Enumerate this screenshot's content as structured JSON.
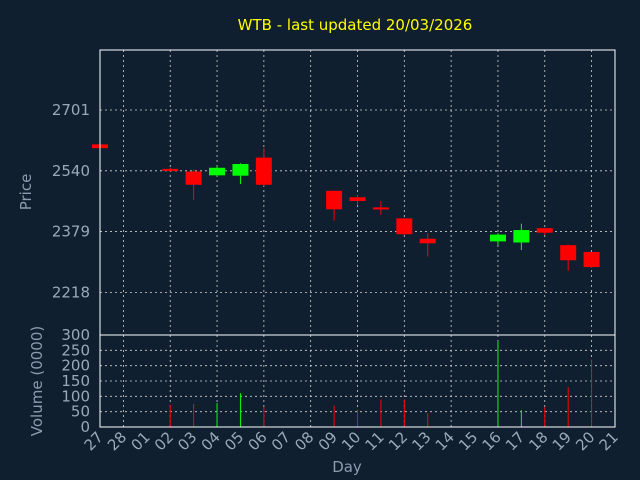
{
  "chart_data": {
    "type": "candlestick",
    "title": "WTB - last updated 20/03/2026",
    "xlabel": "Day",
    "x_ticks": [
      "27",
      "28",
      "01",
      "02",
      "03",
      "04",
      "05",
      "06",
      "07",
      "08",
      "09",
      "10",
      "11",
      "12",
      "13",
      "14",
      "15",
      "16",
      "17",
      "18",
      "19",
      "20",
      "21"
    ],
    "price_panel": {
      "ylabel": "Price",
      "yticks": [
        2218,
        2379,
        2540,
        2701
      ],
      "ylim": [
        2105,
        2860
      ],
      "grid": true
    },
    "volume_panel": {
      "ylabel": "Volume (0000)",
      "yticks": [
        0,
        50,
        100,
        150,
        200,
        250,
        300
      ],
      "ylim": [
        0,
        300
      ],
      "grid": true
    },
    "colors": {
      "up": "#00ff00",
      "down": "#ff0000",
      "background": "#0f1f30",
      "frame": "#ffffff",
      "title": "#ffff00"
    },
    "candles": [
      {
        "day": "27",
        "open": 2610,
        "high": 2610,
        "low": 2600,
        "close": 2600,
        "volume": 0
      },
      {
        "day": "02",
        "open": 2545,
        "high": 2548,
        "low": 2538,
        "close": 2541,
        "volume": 72
      },
      {
        "day": "03",
        "open": 2538,
        "high": 2543,
        "low": 2463,
        "close": 2503,
        "volume": 75
      },
      {
        "day": "04",
        "open": 2528,
        "high": 2552,
        "low": 2525,
        "close": 2548,
        "volume": 78
      },
      {
        "day": "05",
        "open": 2527,
        "high": 2560,
        "low": 2505,
        "close": 2558,
        "volume": 110
      },
      {
        "day": "06",
        "open": 2575,
        "high": 2600,
        "low": 2500,
        "close": 2503,
        "volume": 65
      },
      {
        "day": "09",
        "open": 2487,
        "high": 2487,
        "low": 2408,
        "close": 2438,
        "volume": 70
      },
      {
        "day": "10",
        "open": 2470,
        "high": 2475,
        "low": 2450,
        "close": 2460,
        "volume": 55
      },
      {
        "day": "11",
        "open": 2443,
        "high": 2460,
        "low": 2423,
        "close": 2440,
        "volume": 90
      },
      {
        "day": "12",
        "open": 2414,
        "high": 2414,
        "low": 2370,
        "close": 2372,
        "volume": 90
      },
      {
        "day": "13",
        "open": 2360,
        "high": 2375,
        "low": 2313,
        "close": 2348,
        "volume": 45
      },
      {
        "day": "16",
        "open": 2353,
        "high": 2375,
        "low": 2343,
        "close": 2371,
        "volume": 280
      },
      {
        "day": "17",
        "open": 2350,
        "high": 2400,
        "low": 2330,
        "close": 2383,
        "volume": 55
      },
      {
        "day": "18",
        "open": 2388,
        "high": 2388,
        "low": 2370,
        "close": 2376,
        "volume": 65
      },
      {
        "day": "19",
        "open": 2343,
        "high": 2345,
        "low": 2275,
        "close": 2303,
        "volume": 130
      },
      {
        "day": "20",
        "open": 2325,
        "high": 2325,
        "low": 2283,
        "close": 2285,
        "volume": 220
      }
    ]
  }
}
